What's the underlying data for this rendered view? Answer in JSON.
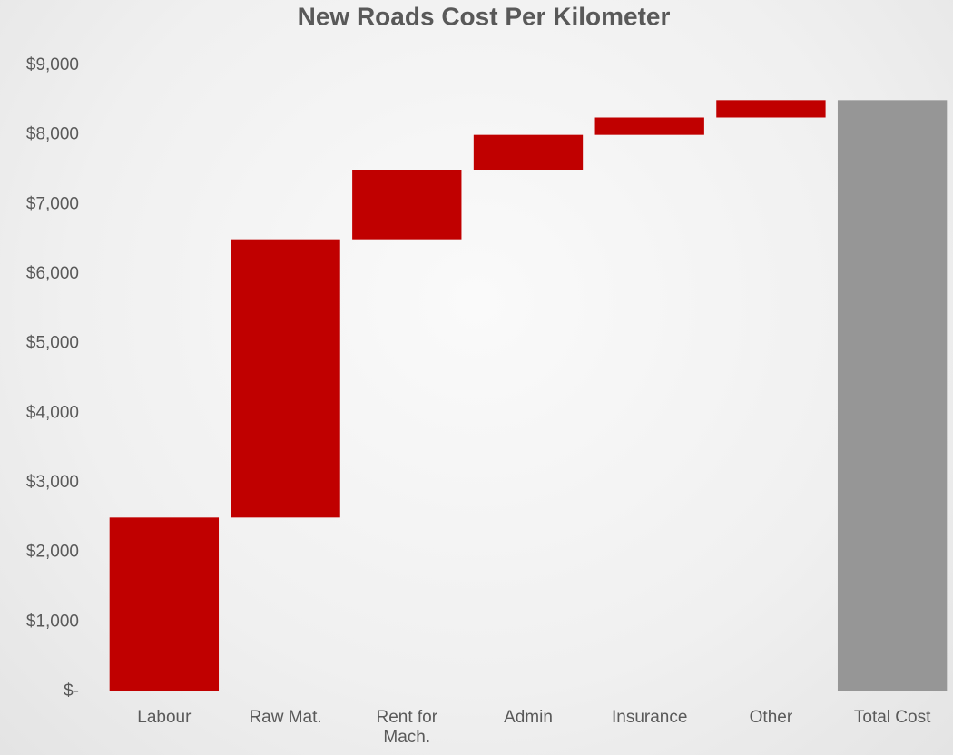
{
  "chart_data": {
    "type": "waterfall",
    "title": "New Roads Cost Per Kilometer",
    "categories": [
      "Labour",
      "Raw Mat.",
      "Rent for Mach.",
      "Admin",
      "Insurance",
      "Other",
      "Total Cost"
    ],
    "values": [
      2500,
      4000,
      1000,
      500,
      250,
      250,
      8500
    ],
    "is_total": [
      false,
      false,
      false,
      false,
      false,
      false,
      true
    ],
    "colors": [
      "#c00000",
      "#c00000",
      "#c00000",
      "#c00000",
      "#c00000",
      "#c00000",
      "#969696"
    ],
    "ylim": [
      0,
      9000
    ],
    "yticks": [
      {
        "value": 0,
        "label": "$-"
      },
      {
        "value": 1000,
        "label": "$1,000"
      },
      {
        "value": 2000,
        "label": "$2,000"
      },
      {
        "value": 3000,
        "label": "$3,000"
      },
      {
        "value": 4000,
        "label": "$4,000"
      },
      {
        "value": 5000,
        "label": "$5,000"
      },
      {
        "value": 6000,
        "label": "$6,000"
      },
      {
        "value": 7000,
        "label": "$7,000"
      },
      {
        "value": 8000,
        "label": "$8,000"
      },
      {
        "value": 9000,
        "label": "$9,000"
      }
    ],
    "grid": false
  }
}
